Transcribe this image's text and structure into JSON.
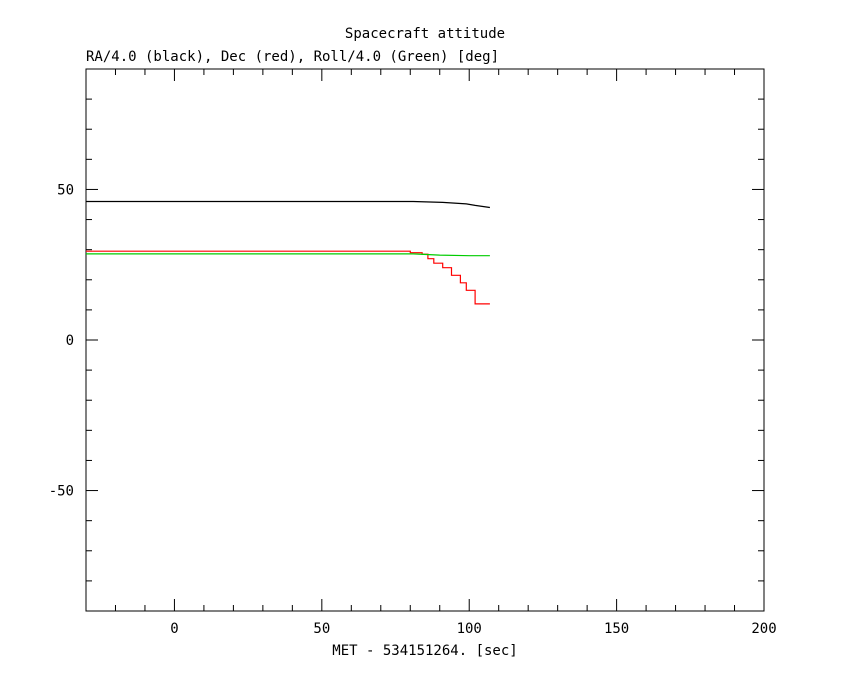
{
  "chart_data": {
    "type": "line",
    "title": "Spacecraft attitude",
    "subtitle": "RA/4.0 (black), Dec (red), Roll/4.0 (Green) [deg]",
    "xlabel": "MET - 534151264. [sec]",
    "ylabel": "",
    "xlim": [
      -30,
      200
    ],
    "ylim": [
      -90,
      90
    ],
    "x_ticks": [
      0,
      50,
      100,
      150,
      200
    ],
    "y_ticks": [
      -50,
      0,
      50
    ],
    "grid": false,
    "series": [
      {
        "color": "#000000",
        "step": false,
        "points": [
          [
            -30,
            46
          ],
          [
            81,
            46
          ],
          [
            91,
            45.7
          ],
          [
            99,
            45.2
          ],
          [
            102,
            44.7
          ],
          [
            107,
            44
          ]
        ]
      },
      {
        "color": "#ff0000",
        "step": true,
        "points": [
          [
            -30,
            29.5
          ],
          [
            78,
            29.5
          ],
          [
            80,
            29
          ],
          [
            84,
            28.5
          ],
          [
            86,
            27
          ],
          [
            88,
            25.5
          ],
          [
            91,
            24
          ],
          [
            94,
            21.5
          ],
          [
            97,
            19
          ],
          [
            99,
            16.5
          ],
          [
            102,
            12
          ],
          [
            104.5,
            12
          ],
          [
            107,
            12
          ]
        ]
      },
      {
        "color": "#00cc00",
        "step": false,
        "points": [
          [
            -30,
            28.6
          ],
          [
            81,
            28.6
          ],
          [
            90,
            28.2
          ],
          [
            100,
            28
          ],
          [
            107,
            28
          ]
        ]
      }
    ]
  }
}
